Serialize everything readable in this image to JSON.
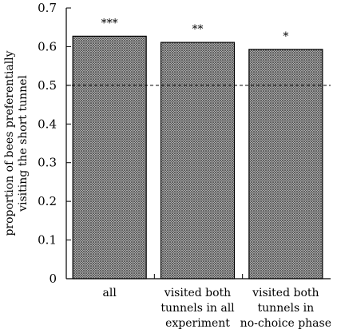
{
  "chart_data": {
    "type": "bar",
    "categories": [
      [
        "all"
      ],
      [
        "visited both",
        "tunnels in all",
        "experiment"
      ],
      [
        "visited both",
        "tunnels in",
        "no-choice phase"
      ]
    ],
    "values": [
      0.627,
      0.611,
      0.593
    ],
    "annotations": [
      "***",
      "**",
      "*"
    ],
    "ylabel": [
      "proportion of bees preferentially",
      "visiting the short tunnel"
    ],
    "xlabel": "",
    "ylim": [
      0,
      0.7
    ],
    "yticks": [
      "0",
      "0.1",
      "0.2",
      "0.3",
      "0.4",
      "0.5",
      "0.6",
      "0.7"
    ],
    "reference_line": {
      "y": 0.5,
      "style": "dashed"
    },
    "bar_fill": "crosshatch",
    "bar_color": "#7a7a7a",
    "grid": false,
    "legend": "none"
  }
}
